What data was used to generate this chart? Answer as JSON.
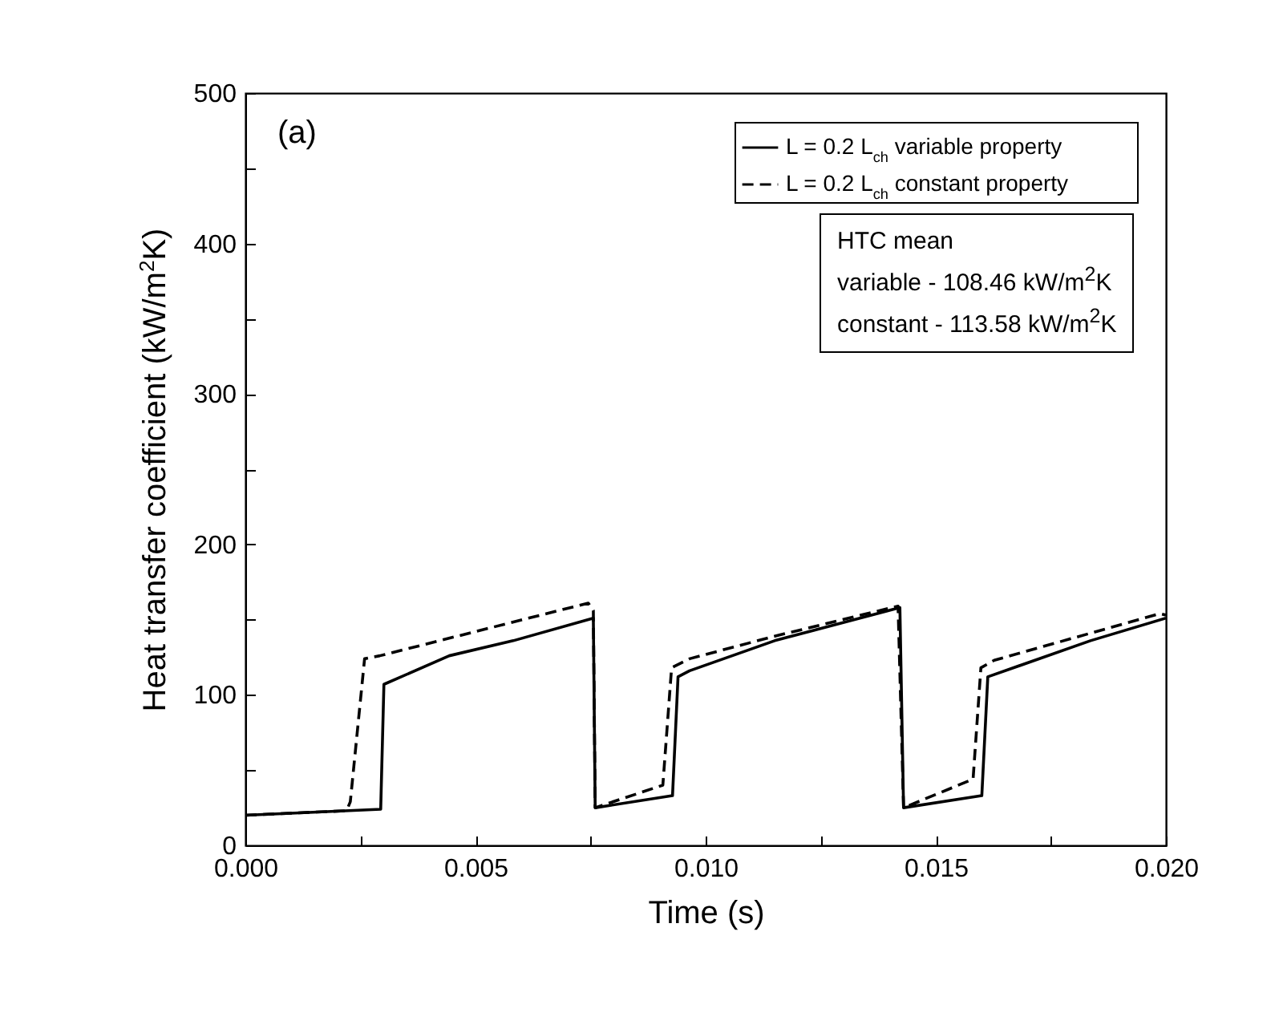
{
  "chart_data": {
    "type": "line",
    "xlabel": "Time (s)",
    "ylabel": "Heat transfer coefficient (kW/m$^{2}$K)",
    "xlim": [
      0,
      0.02
    ],
    "ylim": [
      0,
      500
    ],
    "xticks": [
      {
        "value": 0,
        "label": "0.000"
      },
      {
        "value": 0.0025,
        "label": null
      },
      {
        "value": 0.005,
        "label": "0.005"
      },
      {
        "value": 0.0075,
        "label": null
      },
      {
        "value": 0.01,
        "label": "0.010"
      },
      {
        "value": 0.0125,
        "label": null
      },
      {
        "value": 0.015,
        "label": "0.015"
      },
      {
        "value": 0.0175,
        "label": null
      },
      {
        "value": 0.02,
        "label": "0.020"
      }
    ],
    "yticks": [
      0,
      {
        "value": 50,
        "label": null
      },
      100,
      {
        "value": 150,
        "label": null
      },
      200,
      {
        "value": 250,
        "label": null
      },
      300,
      {
        "value": 350,
        "label": null
      },
      400,
      {
        "value": 450,
        "label": null
      },
      500
    ],
    "legend": "top right",
    "grid": false,
    "annotations": [
      "(a)",
      "HTC mean",
      "variable - 108.46 kW/m$^{2}$K",
      "constant - 113.58 kW/m$^{2}$K"
    ],
    "series": [
      {
        "name": "L = 0.2 L$_{ch}$ variable property",
        "color": "#000000",
        "line_style": "solid",
        "x": [
          0,
          0.00294,
          0.00301,
          0.00443,
          0.00582,
          0.00756,
          0.0076,
          0.00928,
          0.0094,
          0.00965,
          0.0115,
          0.01422,
          0.0143,
          0.016,
          0.01613,
          0.01836,
          0.02
        ],
        "values": [
          20,
          24,
          107,
          126,
          136,
          151,
          25,
          33,
          112,
          116,
          136,
          158,
          25,
          33,
          112,
          136,
          151
        ]
      },
      {
        "name": "L = 0.2 L$_{ch}$ constant property",
        "color": "#000000",
        "line_style": "dashed",
        "x": [
          0,
          0.0022,
          0.00228,
          0.00259,
          0.00292,
          0.00745,
          0.00756,
          0.0076,
          0.00907,
          0.00926,
          0.00965,
          0.0115,
          0.01418,
          0.0143,
          0.01581,
          0.01598,
          0.01627,
          0.01987,
          0.02
        ],
        "values": [
          20,
          23,
          29,
          124,
          126,
          161,
          156,
          25,
          40,
          118,
          124,
          139,
          159,
          25,
          44,
          118,
          123,
          154,
          153
        ]
      }
    ]
  }
}
